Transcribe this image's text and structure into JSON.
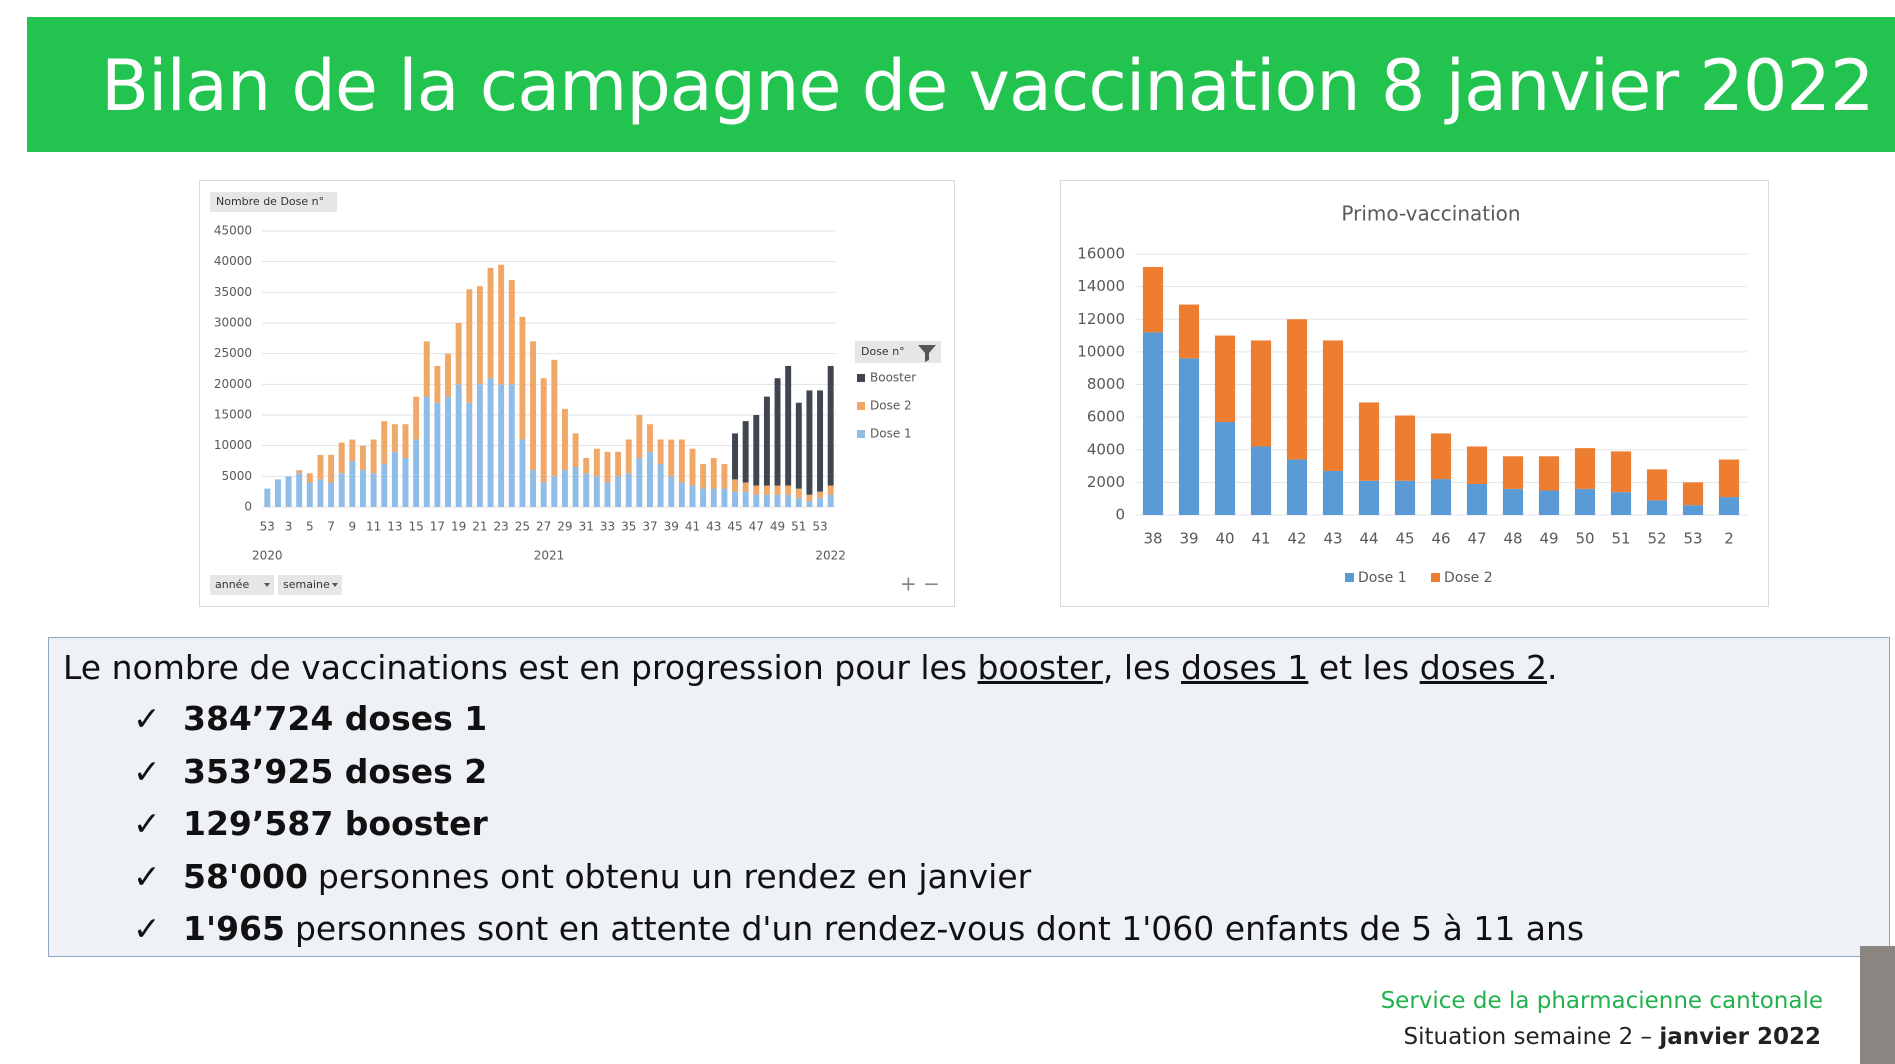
{
  "title": "Bilan de la campagne de vaccination 8 janvier 2022",
  "chart_data": [
    {
      "type": "stacked-bar",
      "field_button": "Nombre de Dose n°",
      "legend_button": "Dose n°",
      "axis_buttons": [
        "année",
        "semaine"
      ],
      "categories": [
        "53",
        null,
        "3",
        null,
        "5",
        null,
        "7",
        null,
        "9",
        null,
        "11",
        null,
        "13",
        null,
        "15",
        null,
        "17",
        null,
        "19",
        null,
        "21",
        null,
        "23",
        null,
        "25",
        null,
        "27",
        null,
        "29",
        null,
        "31",
        null,
        "33",
        null,
        "35",
        null,
        "37",
        null,
        "39",
        null,
        "41",
        null,
        "43",
        null,
        "45",
        null,
        "47",
        null,
        "49",
        null,
        "51",
        null,
        "53",
        null
      ],
      "year_groups": [
        {
          "label": "2020",
          "first": 0,
          "last": 0
        },
        {
          "label": "2021",
          "first": 1,
          "last": 52
        },
        {
          "label": "2022",
          "first": 53,
          "last": 53
        }
      ],
      "series": [
        {
          "name": "Dose 1",
          "color": "#8fbde6",
          "values": [
            3000,
            4500,
            5000,
            5500,
            4000,
            4500,
            4000,
            5500,
            7500,
            6000,
            5500,
            7000,
            9000,
            8000,
            11000,
            18000,
            17000,
            18000,
            20000,
            17000,
            20000,
            21000,
            20000,
            20000,
            11000,
            6000,
            4000,
            5000,
            6000,
            6500,
            5500,
            5000,
            4000,
            5000,
            5500,
            8000,
            9000,
            7000,
            5000,
            4000,
            3500,
            3000,
            3000,
            3000,
            2500,
            2500,
            2000,
            2000,
            2000,
            2000,
            1500,
            1000,
            1500,
            2000
          ]
        },
        {
          "name": "Dose 2",
          "color": "#f0a868",
          "values": [
            0,
            0,
            0,
            500,
            1500,
            4000,
            4500,
            5000,
            3500,
            4000,
            5500,
            7000,
            4500,
            5500,
            7000,
            9000,
            6000,
            7000,
            10000,
            18500,
            16000,
            18000,
            19500,
            17000,
            20000,
            21000,
            17000,
            19000,
            10000,
            5500,
            2500,
            4500,
            5000,
            4000,
            5500,
            7000,
            4500,
            4000,
            6000,
            7000,
            6000,
            4000,
            5000,
            4000,
            2000,
            1500,
            1500,
            1500,
            1500,
            1500,
            1500,
            1000,
            1000,
            1500
          ]
        },
        {
          "name": "Booster",
          "color": "#3f4651",
          "values": [
            null,
            null,
            null,
            null,
            null,
            null,
            null,
            null,
            null,
            null,
            null,
            null,
            null,
            null,
            null,
            null,
            null,
            null,
            null,
            null,
            null,
            null,
            null,
            null,
            null,
            null,
            null,
            null,
            null,
            null,
            null,
            null,
            null,
            null,
            null,
            null,
            null,
            null,
            null,
            null,
            null,
            null,
            null,
            null,
            7500,
            10000,
            11500,
            14500,
            17500,
            19500,
            14000,
            17000,
            16500,
            19500
          ]
        }
      ],
      "ylim": [
        0,
        45000
      ],
      "yticks": [
        0,
        5000,
        10000,
        15000,
        20000,
        25000,
        30000,
        35000,
        40000,
        45000
      ],
      "grid": true,
      "legend": "right"
    },
    {
      "type": "stacked-bar",
      "title": "Primo-vaccination",
      "categories": [
        "38",
        "39",
        "40",
        "41",
        "42",
        "43",
        "44",
        "45",
        "46",
        "47",
        "48",
        "49",
        "50",
        "51",
        "52",
        "53",
        "2"
      ],
      "series": [
        {
          "name": "Dose 1",
          "color": "#5b9bd5",
          "values": [
            11200,
            9600,
            5700,
            4200,
            3400,
            2700,
            2100,
            2100,
            2200,
            1900,
            1600,
            1500,
            1600,
            1400,
            900,
            600,
            1100
          ]
        },
        {
          "name": "Dose 2",
          "color": "#ed7d31",
          "values": [
            4000,
            3300,
            5300,
            6500,
            8600,
            8000,
            4800,
            4000,
            2800,
            2300,
            2000,
            2100,
            2500,
            2500,
            1900,
            1400,
            2300
          ]
        }
      ],
      "ylim": [
        0,
        16000
      ],
      "yticks": [
        0,
        2000,
        4000,
        6000,
        8000,
        10000,
        12000,
        14000,
        16000
      ],
      "grid": true,
      "legend": "bottom"
    }
  ],
  "summary": {
    "intro": [
      {
        "text": "Le nombre de vaccinations est en progression pour les "
      },
      {
        "text": "booster",
        "underline": true
      },
      {
        "text": ", les "
      },
      {
        "text": "doses 1",
        "underline": true
      },
      {
        "text": " et les "
      },
      {
        "text": "doses 2",
        "underline": true
      },
      {
        "text": "."
      }
    ],
    "bullets": [
      {
        "bold": "384’724 doses 1"
      },
      {
        "bold": "353’925 doses 2"
      },
      {
        "bold": "129’587 booster"
      },
      {
        "bold": "58'000",
        "text": "personnes ont obtenu un rendez en janvier"
      },
      {
        "bold": "1'965",
        "text": "personnes sont en attente d'un rendez-vous dont 1'060 enfants de 5 à 11 ans"
      }
    ]
  },
  "footer": {
    "service": "Service de la pharmacienne cantonale",
    "situation": "Situation semaine 2 –",
    "date": "janvier 2022"
  }
}
